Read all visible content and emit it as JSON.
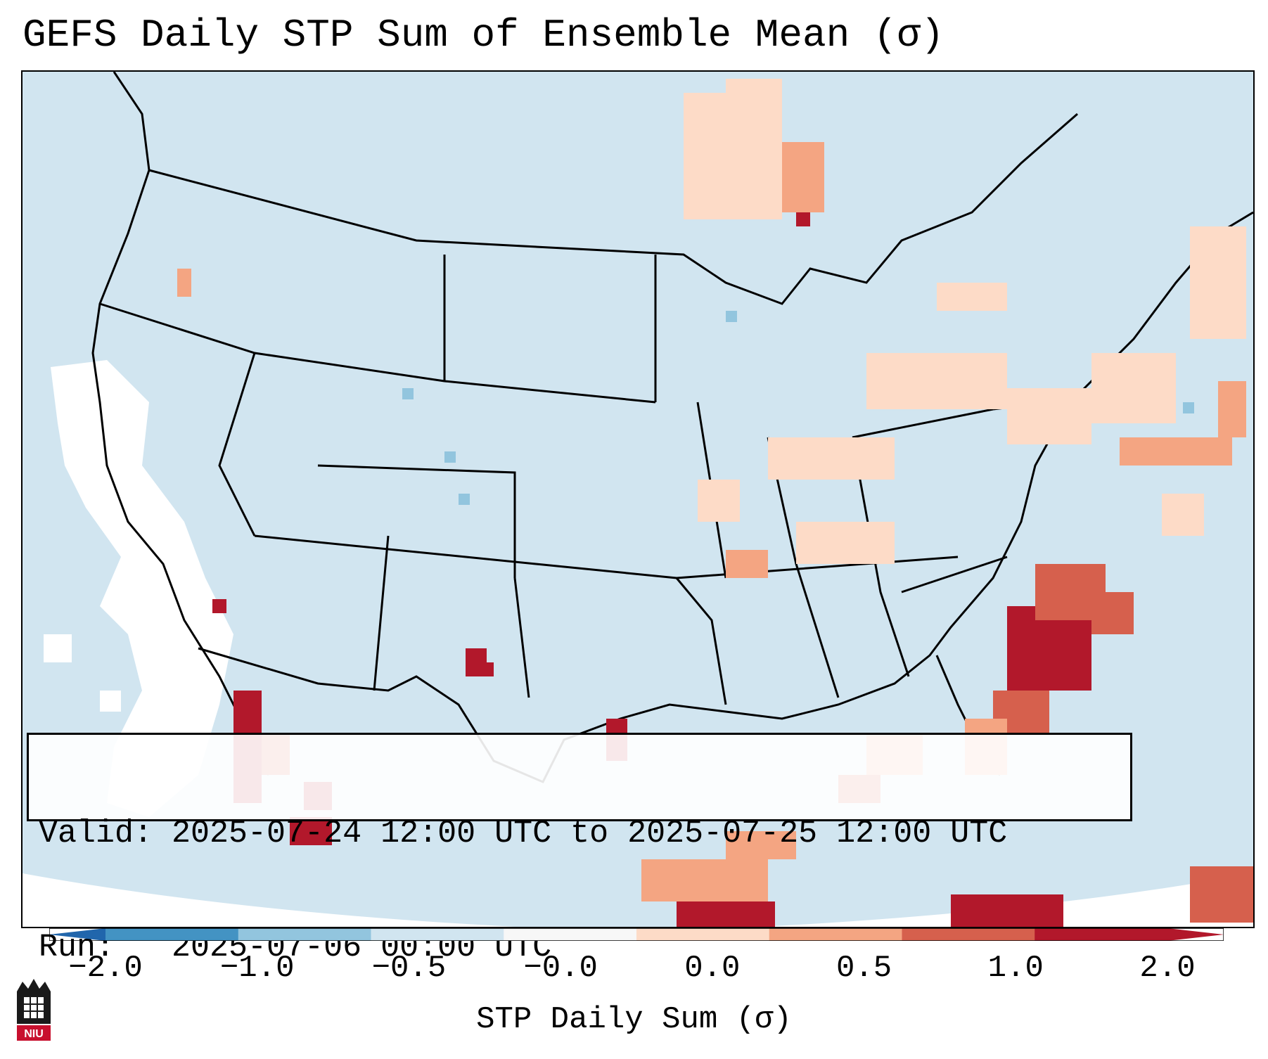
{
  "title": "GEFS Daily STP Sum of Ensemble Mean (σ)",
  "info": {
    "valid_line": "Valid: 2025-07-24 12:00 UTC to 2025-07-25 12:00 UTC",
    "run_line": "Run:   2025-07-06 00:00 UTC"
  },
  "colorbar": {
    "label": "STP Daily Sum (σ)",
    "ticks": [
      "−2.0",
      "−1.0",
      "−0.5",
      "−0.0",
      "0.0",
      "0.5",
      "1.0",
      "2.0"
    ],
    "colors": [
      "#4393c3",
      "#92c5de",
      "#d1e5f0",
      "#f7f7f7",
      "#fddbc7",
      "#f4a582",
      "#d6604d",
      "#b2182b"
    ],
    "extend_low_color": "#2166ac",
    "extend_high_color": "#b2182b"
  },
  "logo": {
    "text": "NIU"
  }
}
